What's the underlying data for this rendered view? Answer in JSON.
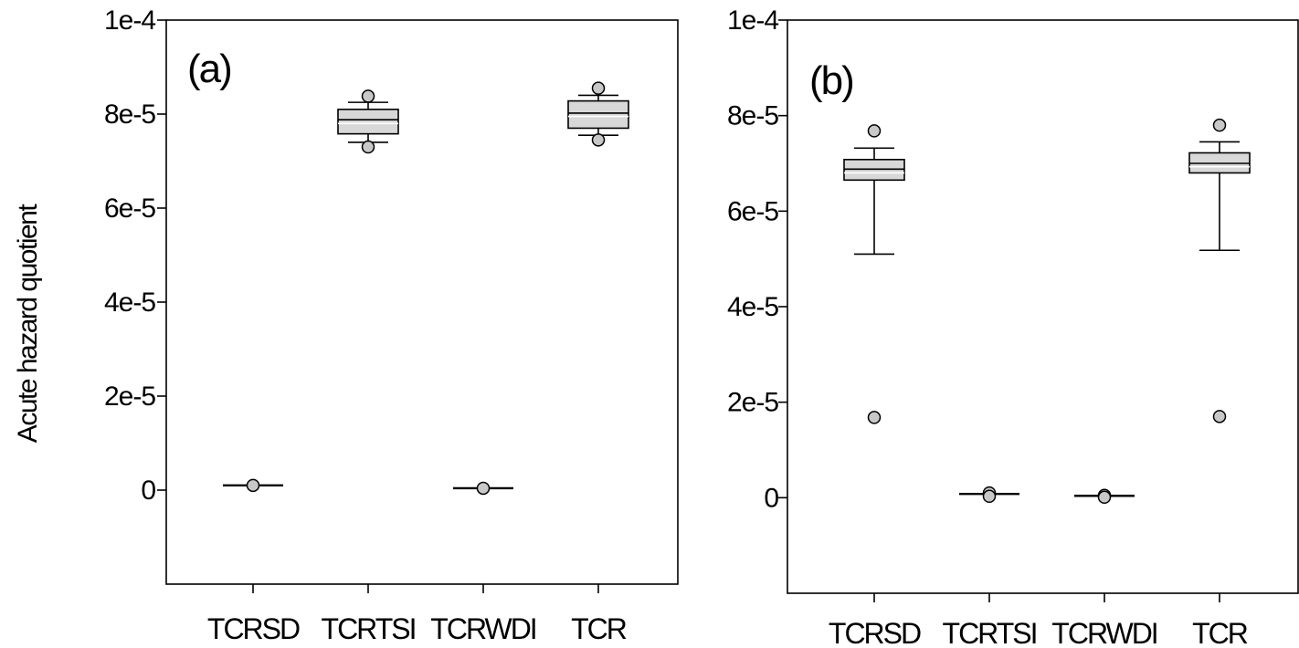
{
  "ylabel": "Acute hazard quotient",
  "chart_data": [
    {
      "type": "box",
      "panel_label": "(a)",
      "categories": [
        "TCRSD",
        "TCRTSI",
        "TCRWDI",
        "TCR"
      ],
      "ylabel": "Acute hazard quotient",
      "ylim": [
        -2e-05,
        0.0001
      ],
      "yticks": [
        0,
        2e-05,
        4e-05,
        6e-05,
        8e-05,
        0.0001
      ],
      "ytick_labels": [
        "0",
        "2e-5",
        "4e-5",
        "6e-5",
        "8e-5",
        "1e-4"
      ],
      "grid": false,
      "boxes": [
        {
          "category": "TCRSD",
          "whisker_low": 1e-06,
          "q1": 1e-06,
          "median": 1e-06,
          "q3": 1e-06,
          "whisker_high": 1e-06,
          "mean": null,
          "outliers": [
            1e-06
          ]
        },
        {
          "category": "TCRTSI",
          "whisker_low": 7.4e-05,
          "q1": 7.58e-05,
          "median": 7.88e-05,
          "q3": 8.1e-05,
          "whisker_high": 8.25e-05,
          "mean": 7.8e-05,
          "outliers": [
            7.3e-05,
            8.38e-05
          ]
        },
        {
          "category": "TCRWDI",
          "whisker_low": 4e-07,
          "q1": 4e-07,
          "median": 4e-07,
          "q3": 4e-07,
          "whisker_high": 4e-07,
          "mean": null,
          "outliers": [
            4e-07
          ]
        },
        {
          "category": "TCR",
          "whisker_low": 7.55e-05,
          "q1": 7.7e-05,
          "median": 8.02e-05,
          "q3": 8.28e-05,
          "whisker_high": 8.4e-05,
          "mean": 7.95e-05,
          "outliers": [
            7.45e-05,
            8.55e-05
          ]
        }
      ]
    },
    {
      "type": "box",
      "panel_label": "(b)",
      "categories": [
        "TCRSD",
        "TCRTSI",
        "TCRWDI",
        "TCR"
      ],
      "ylim": [
        -2e-05,
        0.0001
      ],
      "yticks": [
        0,
        2e-05,
        4e-05,
        6e-05,
        8e-05,
        0.0001
      ],
      "ytick_labels": [
        "0",
        "2e-5",
        "4e-5",
        "6e-5",
        "8e-5",
        "1e-4"
      ],
      "grid": false,
      "boxes": [
        {
          "category": "TCRSD",
          "whisker_low": 5.1e-05,
          "q1": 6.65e-05,
          "median": 6.88e-05,
          "q3": 7.08e-05,
          "whisker_high": 7.32e-05,
          "mean": 6.8e-05,
          "outliers": [
            1.68e-05,
            7.68e-05
          ]
        },
        {
          "category": "TCRTSI",
          "whisker_low": 8e-07,
          "q1": 8e-07,
          "median": 8e-07,
          "q3": 8e-07,
          "whisker_high": 8e-07,
          "mean": null,
          "outliers": [
            1e-06,
            3e-07
          ]
        },
        {
          "category": "TCRWDI",
          "whisker_low": 4e-07,
          "q1": 4e-07,
          "median": 4e-07,
          "q3": 4e-07,
          "whisker_high": 4e-07,
          "mean": null,
          "outliers": [
            5e-07,
            1e-07
          ]
        },
        {
          "category": "TCR",
          "whisker_low": 5.18e-05,
          "q1": 6.8e-05,
          "median": 7e-05,
          "q3": 7.22e-05,
          "whisker_high": 7.45e-05,
          "mean": 6.93e-05,
          "outliers": [
            1.7e-05,
            7.8e-05
          ]
        }
      ]
    }
  ]
}
